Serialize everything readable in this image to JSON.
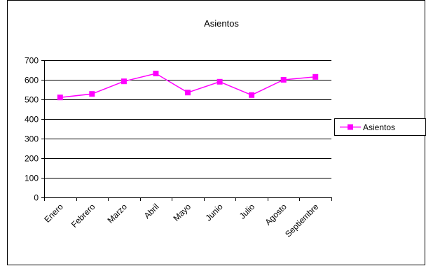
{
  "chart_data": {
    "type": "line",
    "title": "Asientos",
    "xlabel": "",
    "ylabel": "",
    "categories": [
      "Enero",
      "Febrero",
      "Marzo",
      "Abril",
      "Mayo",
      "Junio",
      "Julio",
      "Agosto",
      "Septiembre"
    ],
    "series": [
      {
        "name": "Asientos",
        "values": [
          510,
          528,
          592,
          632,
          535,
          590,
          522,
          600,
          615
        ],
        "color": "#FF00FF",
        "marker": "square"
      }
    ],
    "ylim": [
      0,
      700
    ],
    "yticks": [
      0,
      100,
      200,
      300,
      400,
      500,
      600,
      700
    ],
    "grid": true,
    "legend": "right"
  }
}
